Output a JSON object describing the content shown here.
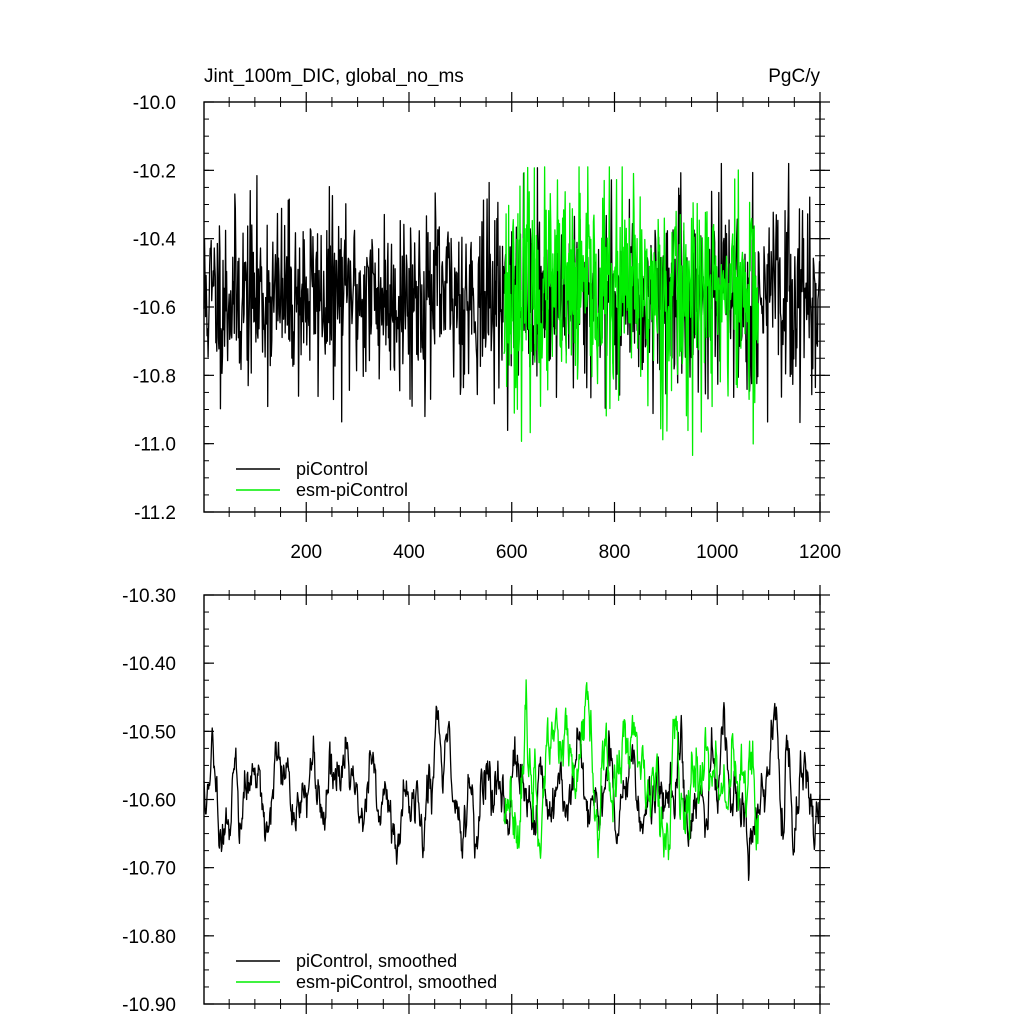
{
  "chart_data": [
    {
      "type": "line",
      "title": "Jint_100m_DIC, global_no_ms",
      "units": "PgC/y",
      "xlim": [
        1,
        1200
      ],
      "ylim": [
        -11.2,
        -10.0
      ],
      "x_ticks": [
        200,
        400,
        600,
        800,
        1000,
        1200
      ],
      "x_tick_labels": [
        "200",
        "400",
        "600",
        "800",
        "1000",
        "1200"
      ],
      "y_ticks": [
        -10.0,
        -10.2,
        -10.4,
        -10.6,
        -10.8,
        -11.0,
        -11.2
      ],
      "y_tick_labels": [
        "-10.0",
        "-10.2",
        "-10.4",
        "-10.6",
        "-10.8",
        "-11.0",
        "-11.2"
      ],
      "legend_position": "bottom-left",
      "series": [
        {
          "name": "piControl",
          "color": "#000000",
          "x_start": 1,
          "x_end": 1200,
          "seed": 11,
          "mean": -10.57,
          "amplitude": 0.13,
          "clip": [
            -11.16,
            -10.18
          ]
        },
        {
          "name": "esm-piControl",
          "color": "#00ee00",
          "x_start": 585,
          "x_end": 1080,
          "seed": 23,
          "mean": -10.56,
          "amplitude": 0.16,
          "clip": [
            -11.08,
            -10.19
          ]
        }
      ]
    },
    {
      "type": "line",
      "xlim": [
        1,
        1200
      ],
      "ylim": [
        -10.9,
        -10.3
      ],
      "x_ticks": [
        200,
        400,
        600,
        800,
        1000,
        1200
      ],
      "x_tick_labels": [],
      "y_ticks": [
        -10.3,
        -10.4,
        -10.5,
        -10.6,
        -10.7,
        -10.8,
        -10.9
      ],
      "y_tick_labels": [
        "-10.30",
        "-10.40",
        "-10.50",
        "-10.60",
        "-10.70",
        "-10.80",
        "-10.90"
      ],
      "legend_position": "bottom-left",
      "series": [
        {
          "name": "piControl, smoothed",
          "color": "#000000",
          "x_start": 1,
          "x_end": 1200,
          "seed": 11,
          "mean": -10.585,
          "amplitude": 0.05,
          "clip": [
            -10.81,
            -10.4
          ]
        },
        {
          "name": "esm-piControl, smoothed",
          "color": "#00ee00",
          "x_start": 585,
          "x_end": 1080,
          "seed": 23,
          "mean": -10.575,
          "amplitude": 0.06,
          "clip": [
            -10.815,
            -10.39
          ]
        }
      ]
    }
  ]
}
